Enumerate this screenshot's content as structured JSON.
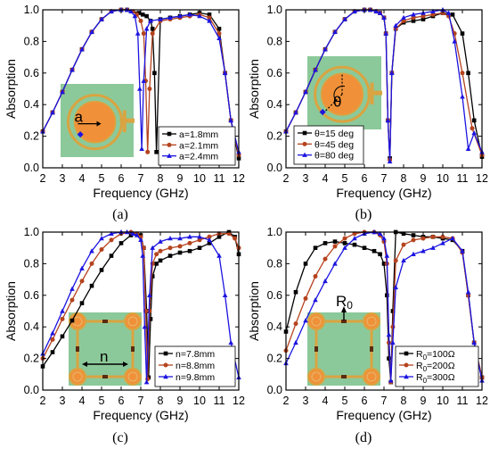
{
  "chart_data": [
    {
      "panel_label": "(a)",
      "type": "line",
      "xlabel": "Frequency (GHz)",
      "ylabel": "Absorption",
      "xlim": [
        2,
        12
      ],
      "ylim": [
        0.0,
        1.0
      ],
      "xticks": [
        "2",
        "3",
        "4",
        "5",
        "6",
        "7",
        "8",
        "9",
        "10",
        "11",
        "12"
      ],
      "yticks": [
        "0.0",
        "0.2",
        "0.4",
        "0.6",
        "0.8",
        "1.0"
      ],
      "legend": "lower-right",
      "inset": {
        "type": "circular-ring-unit-cell",
        "label": "a"
      },
      "series": [
        {
          "name": "a=1.8mm",
          "color": "#000000",
          "marker": "square",
          "x": [
            2,
            2.5,
            3,
            3.5,
            4,
            4.5,
            5,
            5.5,
            6,
            6.3,
            6.6,
            6.9,
            7.1,
            7.3,
            7.5,
            7.6,
            7.7,
            7.8,
            8,
            8.5,
            9,
            9.5,
            10,
            10.5,
            11,
            11.3,
            11.6,
            12
          ],
          "y": [
            0.23,
            0.35,
            0.48,
            0.62,
            0.75,
            0.86,
            0.94,
            0.99,
            1.0,
            1.0,
            0.99,
            0.98,
            0.97,
            0.96,
            0.93,
            0.88,
            0.6,
            0.1,
            0.94,
            0.95,
            0.96,
            0.97,
            0.98,
            0.97,
            0.88,
            0.6,
            0.3,
            0.06
          ]
        },
        {
          "name": "a=2.1mm",
          "color": "#b5431e",
          "marker": "circle",
          "x": [
            2,
            2.5,
            3,
            3.5,
            4,
            4.5,
            5,
            5.5,
            6,
            6.3,
            6.6,
            6.8,
            7,
            7.15,
            7.25,
            7.35,
            7.45,
            7.6,
            8,
            8.5,
            9,
            9.5,
            10,
            10.5,
            11,
            11.3,
            11.6,
            12
          ],
          "y": [
            0.23,
            0.35,
            0.48,
            0.62,
            0.75,
            0.86,
            0.94,
            0.99,
            1.0,
            1.0,
            0.99,
            0.97,
            0.93,
            0.85,
            0.55,
            0.1,
            0.5,
            0.85,
            0.93,
            0.94,
            0.95,
            0.96,
            0.97,
            0.95,
            0.85,
            0.6,
            0.3,
            0.08
          ]
        },
        {
          "name": "a=2.4mm",
          "color": "#1c14e0",
          "marker": "triangle",
          "x": [
            2,
            2.5,
            3,
            3.5,
            4,
            4.5,
            5,
            5.5,
            6,
            6.3,
            6.5,
            6.7,
            6.85,
            6.95,
            7.05,
            7.15,
            7.3,
            7.5,
            8,
            8.5,
            9,
            9.5,
            10,
            10.5,
            11,
            11.3,
            11.6,
            12
          ],
          "y": [
            0.23,
            0.35,
            0.48,
            0.62,
            0.75,
            0.86,
            0.94,
            0.99,
            1.0,
            1.0,
            0.99,
            0.96,
            0.85,
            0.5,
            0.12,
            0.55,
            0.88,
            0.93,
            0.94,
            0.95,
            0.96,
            0.97,
            0.96,
            0.93,
            0.82,
            0.6,
            0.3,
            0.1
          ]
        }
      ]
    },
    {
      "panel_label": "(b)",
      "type": "line",
      "xlabel": "Frequency (GHz)",
      "ylabel": "Absorption",
      "xlim": [
        2,
        12
      ],
      "ylim": [
        0.0,
        1.0
      ],
      "xticks": [
        "2",
        "3",
        "4",
        "5",
        "6",
        "7",
        "8",
        "9",
        "10",
        "11",
        "12"
      ],
      "yticks": [
        "0.0",
        "0.2",
        "0.4",
        "0.6",
        "0.8",
        "1.0"
      ],
      "legend": "lower-left",
      "inset": {
        "type": "circular-ring-unit-cell-angle",
        "label": "θ"
      },
      "series": [
        {
          "name": "θ=15 deg",
          "color": "#000000",
          "marker": "square",
          "x": [
            2,
            2.5,
            3,
            3.5,
            4,
            4.5,
            5,
            5.5,
            6,
            6.3,
            6.6,
            6.8,
            7,
            7.1,
            7.2,
            7.3,
            7.4,
            7.6,
            8,
            8.5,
            9,
            9.5,
            10,
            10.5,
            11,
            11.3,
            11.6,
            12
          ],
          "y": [
            0.23,
            0.35,
            0.48,
            0.62,
            0.75,
            0.86,
            0.94,
            0.99,
            1.0,
            1.0,
            0.99,
            0.98,
            0.95,
            0.85,
            0.3,
            0.06,
            0.6,
            0.88,
            0.92,
            0.93,
            0.94,
            0.96,
            0.98,
            0.97,
            0.85,
            0.6,
            0.3,
            0.07
          ]
        },
        {
          "name": "θ=45 deg",
          "color": "#b5431e",
          "marker": "circle",
          "x": [
            2,
            2.5,
            3,
            3.5,
            4,
            4.5,
            5,
            5.5,
            6,
            6.3,
            6.6,
            6.8,
            7,
            7.1,
            7.2,
            7.3,
            7.4,
            7.6,
            8,
            8.5,
            9,
            9.5,
            10,
            10.3,
            10.6,
            11,
            11.5,
            12
          ],
          "y": [
            0.23,
            0.35,
            0.48,
            0.62,
            0.75,
            0.86,
            0.94,
            0.99,
            1.0,
            1.0,
            0.99,
            0.98,
            0.95,
            0.85,
            0.3,
            0.05,
            0.6,
            0.88,
            0.93,
            0.95,
            0.96,
            0.97,
            0.98,
            0.96,
            0.85,
            0.6,
            0.25,
            0.08
          ]
        },
        {
          "name": "θ=80 deg",
          "color": "#1c14e0",
          "marker": "triangle",
          "x": [
            2,
            2.5,
            3,
            3.5,
            4,
            4.5,
            5,
            5.5,
            6,
            6.3,
            6.6,
            6.8,
            7,
            7.1,
            7.2,
            7.3,
            7.4,
            7.6,
            8,
            8.5,
            9,
            9.5,
            10,
            10.3,
            10.6,
            11,
            11.3,
            11.6,
            12
          ],
          "y": [
            0.23,
            0.35,
            0.48,
            0.62,
            0.75,
            0.86,
            0.94,
            0.99,
            1.0,
            1.0,
            0.99,
            0.98,
            0.95,
            0.85,
            0.3,
            0.04,
            0.6,
            0.9,
            0.95,
            0.97,
            0.98,
            0.99,
            1.0,
            0.98,
            0.8,
            0.45,
            0.12,
            0.22,
            0.1
          ]
        }
      ]
    },
    {
      "panel_label": "(c)",
      "type": "line",
      "xlabel": "Frequency (GHz)",
      "ylabel": "Absorption",
      "xlim": [
        2,
        12
      ],
      "ylim": [
        0.0,
        1.0
      ],
      "xticks": [
        "2",
        "3",
        "4",
        "5",
        "6",
        "7",
        "8",
        "9",
        "10",
        "11",
        "12"
      ],
      "yticks": [
        "0.0",
        "0.2",
        "0.4",
        "0.6",
        "0.8",
        "1.0"
      ],
      "legend": "lower-right",
      "inset": {
        "type": "square-ring-unit-cell",
        "label": "n"
      },
      "series": [
        {
          "name": "n=7.8mm",
          "color": "#000000",
          "marker": "square",
          "x": [
            2,
            2.5,
            3,
            3.5,
            4,
            4.5,
            5,
            5.5,
            6,
            6.5,
            6.8,
            7,
            7.15,
            7.3,
            7.4,
            7.5,
            7.6,
            7.8,
            8,
            8.5,
            9,
            9.5,
            10,
            10.5,
            11,
            11.5,
            11.8,
            12
          ],
          "y": [
            0.15,
            0.24,
            0.34,
            0.44,
            0.55,
            0.66,
            0.76,
            0.85,
            0.93,
            0.98,
            0.99,
            0.98,
            0.9,
            0.5,
            0.08,
            0.45,
            0.72,
            0.8,
            0.82,
            0.85,
            0.87,
            0.88,
            0.9,
            0.93,
            0.97,
            1.0,
            0.97,
            0.86
          ]
        },
        {
          "name": "n=8.8mm",
          "color": "#b5431e",
          "marker": "circle",
          "x": [
            2,
            2.5,
            3,
            3.5,
            4,
            4.5,
            5,
            5.5,
            6,
            6.5,
            6.8,
            7,
            7.15,
            7.25,
            7.35,
            7.45,
            7.6,
            7.8,
            8,
            8.5,
            9,
            9.5,
            10,
            10.5,
            11,
            11.5,
            11.8,
            12
          ],
          "y": [
            0.2,
            0.32,
            0.45,
            0.57,
            0.69,
            0.8,
            0.89,
            0.95,
            0.99,
            1.0,
            0.99,
            0.97,
            0.9,
            0.5,
            0.07,
            0.5,
            0.8,
            0.86,
            0.88,
            0.9,
            0.91,
            0.93,
            0.95,
            0.97,
            0.99,
            0.99,
            0.96,
            0.9
          ]
        },
        {
          "name": "n=9.8mm",
          "color": "#1c14e0",
          "marker": "triangle",
          "x": [
            2,
            2.5,
            3,
            3.5,
            4,
            4.5,
            5,
            5.5,
            6,
            6.3,
            6.6,
            6.8,
            7,
            7.1,
            7.2,
            7.3,
            7.45,
            7.6,
            8,
            8.5,
            9,
            9.5,
            10,
            10.5,
            11,
            11.3,
            11.6,
            12
          ],
          "y": [
            0.23,
            0.36,
            0.5,
            0.64,
            0.77,
            0.88,
            0.96,
            0.99,
            1.0,
            1.0,
            0.99,
            0.98,
            0.95,
            0.85,
            0.4,
            0.05,
            0.6,
            0.9,
            0.94,
            0.96,
            0.96,
            0.97,
            0.97,
            0.95,
            0.85,
            0.6,
            0.3,
            0.08
          ]
        }
      ]
    },
    {
      "panel_label": "(d)",
      "type": "line",
      "xlabel": "Frequency (GHz)",
      "ylabel": "Absorption",
      "xlim": [
        2,
        12
      ],
      "ylim": [
        0.0,
        1.0
      ],
      "xticks": [
        "2",
        "3",
        "4",
        "5",
        "6",
        "7",
        "8",
        "9",
        "10",
        "11",
        "12"
      ],
      "yticks": [
        "0.0",
        "0.2",
        "0.4",
        "0.6",
        "0.8",
        "1.0"
      ],
      "legend": "lower-right",
      "inset": {
        "type": "square-ring-unit-cell-resistor",
        "label": "R0"
      },
      "series": [
        {
          "name": "R0=100Ω",
          "legend_label": {
            "base": "R",
            "sub": "0",
            "rest": "=100Ω"
          },
          "color": "#000000",
          "marker": "square",
          "x": [
            2,
            2.5,
            3,
            3.5,
            4,
            4.5,
            5,
            5.5,
            6,
            6.5,
            6.8,
            7,
            7.15,
            7.25,
            7.35,
            7.45,
            7.6,
            8,
            8.5,
            9,
            9.5,
            10,
            10.5,
            11,
            11.3,
            11.6,
            12
          ],
          "y": [
            0.37,
            0.62,
            0.8,
            0.9,
            0.93,
            0.94,
            0.93,
            0.92,
            0.9,
            0.88,
            0.86,
            0.8,
            0.6,
            0.2,
            0.05,
            0.5,
            1.0,
            0.99,
            0.98,
            0.97,
            0.97,
            0.96,
            0.95,
            0.88,
            0.6,
            0.3,
            0.08
          ]
        },
        {
          "name": "R0=200Ω",
          "legend_label": {
            "base": "R",
            "sub": "0",
            "rest": "=200Ω"
          },
          "color": "#b5431e",
          "marker": "circle",
          "x": [
            2,
            2.5,
            3,
            3.5,
            4,
            4.5,
            5,
            5.5,
            6,
            6.5,
            6.8,
            7,
            7.15,
            7.25,
            7.35,
            7.45,
            7.6,
            8,
            8.5,
            9,
            9.5,
            10,
            10.5,
            11,
            11.3,
            11.6,
            12
          ],
          "y": [
            0.25,
            0.42,
            0.58,
            0.72,
            0.83,
            0.91,
            0.96,
            0.99,
            1.0,
            1.0,
            0.98,
            0.94,
            0.8,
            0.3,
            0.05,
            0.4,
            0.82,
            0.92,
            0.95,
            0.96,
            0.97,
            0.97,
            0.96,
            0.87,
            0.6,
            0.3,
            0.08
          ]
        },
        {
          "name": "R0=300Ω",
          "legend_label": {
            "base": "R",
            "sub": "0",
            "rest": "=300Ω"
          },
          "color": "#1c14e0",
          "marker": "triangle",
          "x": [
            2,
            2.5,
            3,
            3.5,
            4,
            4.5,
            5,
            5.5,
            6,
            6.5,
            6.8,
            7,
            7.15,
            7.25,
            7.35,
            7.45,
            7.6,
            8,
            8.5,
            9,
            9.5,
            10,
            10.5,
            11,
            11.3,
            11.6,
            12
          ],
          "y": [
            0.17,
            0.3,
            0.44,
            0.57,
            0.69,
            0.8,
            0.9,
            0.96,
            0.99,
            1.0,
            0.99,
            0.96,
            0.85,
            0.35,
            0.06,
            0.3,
            0.65,
            0.82,
            0.86,
            0.88,
            0.9,
            0.93,
            0.96,
            0.88,
            0.62,
            0.3,
            0.06
          ]
        }
      ]
    }
  ]
}
